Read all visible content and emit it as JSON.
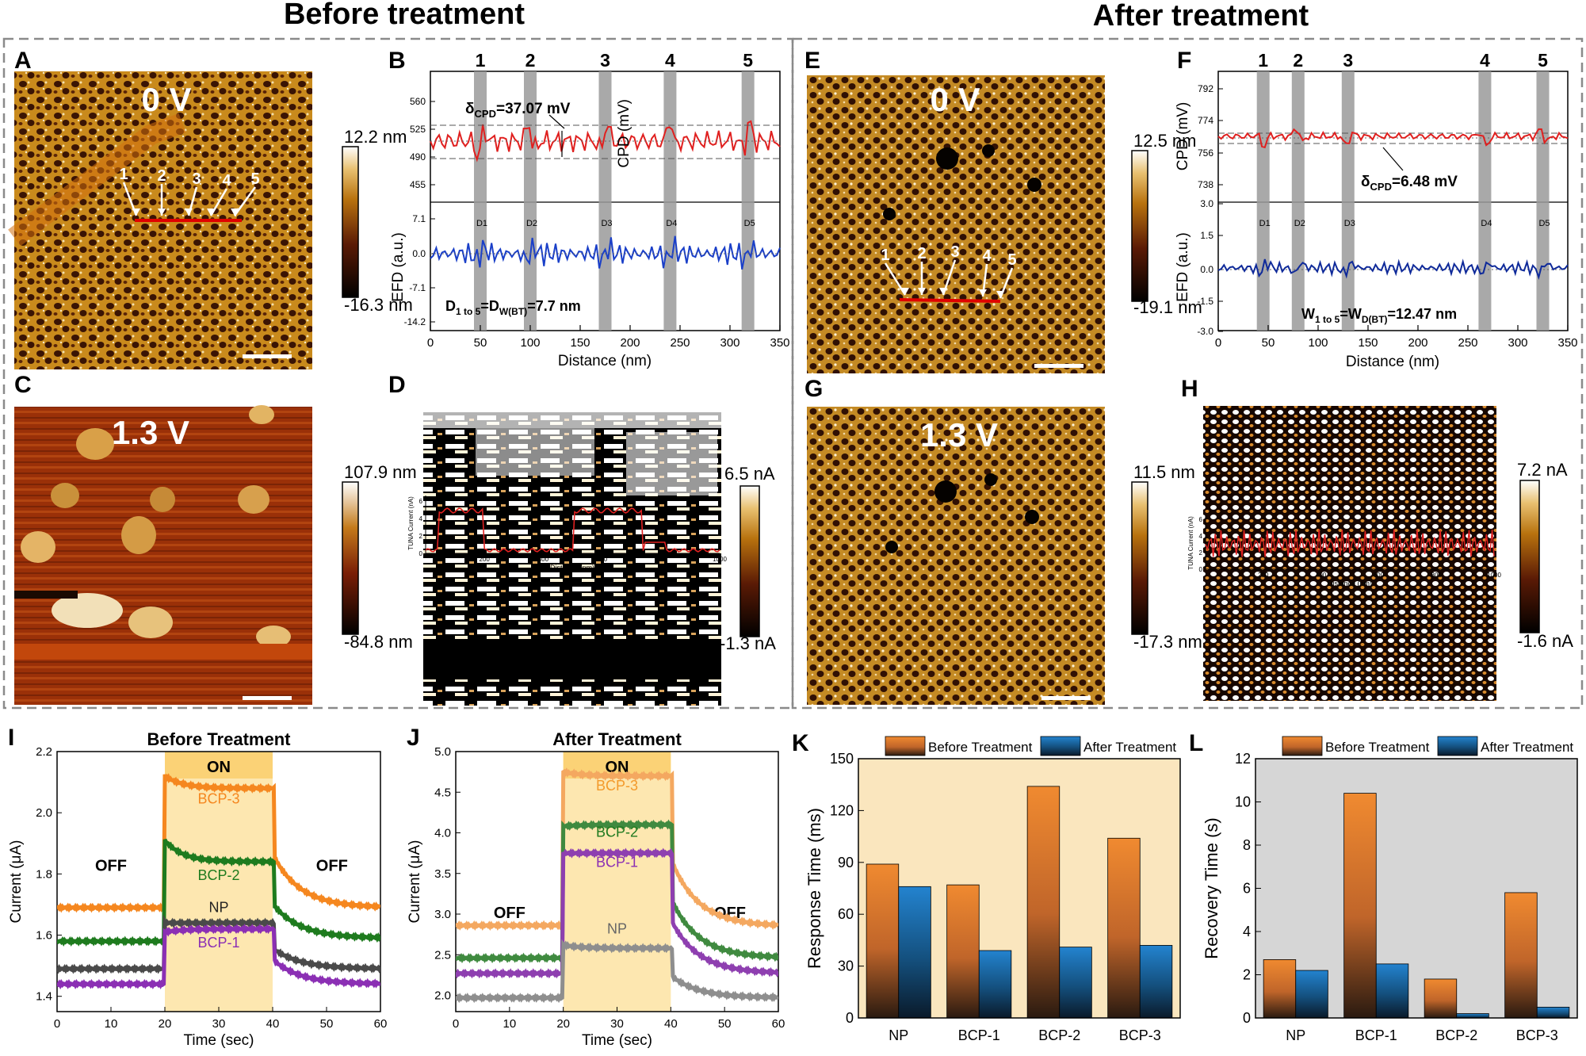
{
  "headings": {
    "before": "Before treatment",
    "after": "After treatment"
  },
  "colors": {
    "cpd": "#e0201f",
    "efd": "#1a3fc8",
    "orange": "#f39a2b",
    "purple": "#8b2fb4",
    "green": "#1f7a1f",
    "gray": "#555555",
    "blue": "#1f78c8",
    "band": "#9a9a9a"
  },
  "panels": {
    "A": {
      "letter": "A",
      "voltage": "0 V",
      "scale_max": "12.2 nm",
      "scale_min": "-16.3 nm",
      "markers": [
        "1",
        "2",
        "3",
        "4",
        "5"
      ]
    },
    "B": {
      "letter": "B",
      "bands": [
        "1",
        "2",
        "3",
        "4",
        "5"
      ],
      "cpd_ylabel": "CPD (mV)",
      "cpd_ticks": [
        "560",
        "525",
        "490",
        "455"
      ],
      "efd_ylabel": "EFD (a.u.)",
      "efd_ticks": [
        "7.1",
        "0.0",
        "-7.1",
        "-14.2"
      ],
      "x_ticks": [
        "0",
        "50",
        "100",
        "150",
        "200",
        "250",
        "300",
        "350"
      ],
      "xlabel": "Distance (nm)",
      "delta_symbol": "δ",
      "delta_sub": "CPD",
      "delta_value": "=37.07 mV",
      "d_pre": "D",
      "d_sub": "1 to 5",
      "d_mid": "=D",
      "d_sub2": "W(BT)",
      "d_val": "=7.7 nm",
      "d_labels": [
        "D1",
        "D2",
        "D3",
        "D4",
        "D5"
      ]
    },
    "C": {
      "letter": "C",
      "voltage": "1.3 V",
      "scale_max": "107.9 nm",
      "scale_min": "-84.8 nm"
    },
    "D": {
      "letter": "D",
      "scale_max": "6.5 nA",
      "scale_min": "-1.3 nA",
      "inset_ylabel": "TUNA Current (nA)",
      "inset_yticks": [
        "6",
        "4",
        "2",
        "0"
      ],
      "inset_xticks": [
        "200",
        "400",
        "600",
        "800",
        "1000"
      ],
      "inset_xlabel": "Distance (nm)"
    },
    "E": {
      "letter": "E",
      "voltage": "0 V",
      "scale_max": "12.5 nm",
      "scale_min": "-19.1 nm",
      "markers": [
        "1",
        "2",
        "3",
        "4",
        "5"
      ]
    },
    "F": {
      "letter": "F",
      "bands": [
        "1",
        "2",
        "3",
        "4",
        "5"
      ],
      "cpd_ylabel": "CPD (mV)",
      "cpd_ticks": [
        "792",
        "774",
        "756",
        "738"
      ],
      "efd_ylabel": "EFD (a.u.)",
      "efd_ticks": [
        "3.0",
        "1.5",
        "0.0",
        "-1.5",
        "-3.0"
      ],
      "x_ticks": [
        "0",
        "50",
        "100",
        "150",
        "200",
        "250",
        "300",
        "350"
      ],
      "xlabel": "Distance (nm)",
      "delta_symbol": "δ",
      "delta_sub": "CPD",
      "delta_value": "=6.48 mV",
      "w_pre": "W",
      "w_sub": "1 to 5",
      "w_mid": "=W",
      "w_sub2": "D(BT)",
      "w_val": "=12.47 nm",
      "d_labels": [
        "D1",
        "D2",
        "D3",
        "D4",
        "D5"
      ]
    },
    "G": {
      "letter": "G",
      "voltage": "1.3 V",
      "scale_max": "11.5 nm",
      "scale_min": "-17.3 nm"
    },
    "H": {
      "letter": "H",
      "scale_max": "7.2 nA",
      "scale_min": "-1.6 nA",
      "inset_ylabel": "TUNA Current (nA)",
      "inset_yticks": [
        "6",
        "4",
        "2",
        "0"
      ],
      "inset_xticks": [
        "200",
        "400",
        "600",
        "800",
        "1000"
      ],
      "inset_xlabel": "Distance (nm)"
    }
  },
  "chart_data": [
    {
      "panel": "I",
      "type": "line",
      "title": "Before Treatment",
      "xlabel": "Time (sec)",
      "ylabel": "Current (μA)",
      "xlim": [
        0,
        60
      ],
      "ylim": [
        1.35,
        2.2
      ],
      "x_ticks": [
        "0",
        "10",
        "20",
        "30",
        "40",
        "50",
        "60"
      ],
      "y_ticks": [
        "1.4",
        "1.6",
        "1.8",
        "2.0",
        "2.2"
      ],
      "on_window": [
        20,
        40
      ],
      "on_label": "ON",
      "off_label": "OFF",
      "series": [
        {
          "name": "BCP-3",
          "off_start": 1.69,
          "on_peak": 2.12,
          "on_end": 2.08,
          "off_end": 1.69
        },
        {
          "name": "BCP-2",
          "off_start": 1.58,
          "on_peak": 1.91,
          "on_end": 1.84,
          "off_end": 1.59
        },
        {
          "name": "NP",
          "off_start": 1.49,
          "on_peak": 1.64,
          "on_end": 1.64,
          "off_end": 1.49
        },
        {
          "name": "BCP-1",
          "off_start": 1.44,
          "on_peak": 1.61,
          "on_end": 1.62,
          "off_end": 1.44
        }
      ]
    },
    {
      "panel": "J",
      "type": "line",
      "title": "After Treatment",
      "xlabel": "Time (sec)",
      "ylabel": "Current (μA)",
      "xlim": [
        0,
        60
      ],
      "ylim": [
        1.8,
        5.0
      ],
      "x_ticks": [
        "0",
        "10",
        "20",
        "30",
        "40",
        "50",
        "60"
      ],
      "y_ticks": [
        "2.0",
        "2.5",
        "3.0",
        "3.5",
        "4.0",
        "4.5",
        "5.0"
      ],
      "on_window": [
        20,
        40
      ],
      "on_label": "ON",
      "off_label": "OFF",
      "series": [
        {
          "name": "BCP-3",
          "off_start": 2.86,
          "on_peak": 4.75,
          "on_end": 4.7,
          "off_end": 2.85
        },
        {
          "name": "BCP-2",
          "off_start": 2.46,
          "on_peak": 4.08,
          "on_end": 4.1,
          "off_end": 2.46
        },
        {
          "name": "BCP-1",
          "off_start": 2.27,
          "on_peak": 3.75,
          "on_end": 3.75,
          "off_end": 2.27
        },
        {
          "name": "NP",
          "off_start": 1.97,
          "on_peak": 2.62,
          "on_end": 2.58,
          "off_end": 1.97
        }
      ]
    },
    {
      "panel": "K",
      "type": "bar",
      "ylabel": "Response Time (ms)",
      "categories": [
        "NP",
        "BCP-1",
        "BCP-2",
        "BCP-3"
      ],
      "ylim": [
        0,
        150
      ],
      "y_ticks": [
        "0",
        "30",
        "60",
        "90",
        "120",
        "150"
      ],
      "series": [
        {
          "name": "Before Treatment",
          "values": [
            89,
            77,
            134,
            104
          ]
        },
        {
          "name": "After Treatment",
          "values": [
            76,
            39,
            41,
            42
          ]
        }
      ],
      "legend": "top"
    },
    {
      "panel": "L",
      "type": "bar",
      "ylabel": "Recovery Time (s)",
      "categories": [
        "NP",
        "BCP-1",
        "BCP-2",
        "BCP-3"
      ],
      "ylim": [
        0,
        12
      ],
      "y_ticks": [
        "0",
        "2",
        "4",
        "6",
        "8",
        "10",
        "12"
      ],
      "series": [
        {
          "name": "Before Treatment",
          "values": [
            2.7,
            10.4,
            1.8,
            5.8
          ]
        },
        {
          "name": "After Treatment",
          "values": [
            2.2,
            2.5,
            0.2,
            0.5
          ]
        }
      ],
      "legend": "top"
    }
  ]
}
